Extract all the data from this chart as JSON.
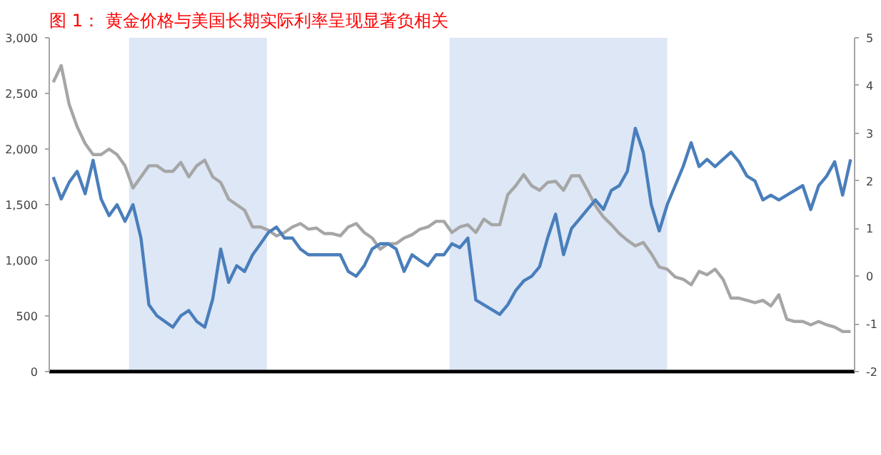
{
  "chart_data": {
    "type": "line",
    "title": "图 1：  黄金价格与美国长期实际利率呈现显著负相关",
    "categories": [
      null,
      null,
      null,
      null,
      null,
      null,
      null,
      null,
      null,
      null,
      null,
      null,
      null,
      null,
      null,
      null,
      null,
      null,
      null,
      null,
      null,
      null,
      null,
      null,
      null,
      null,
      null,
      null,
      null,
      null,
      null,
      null,
      null,
      null,
      null,
      null,
      null,
      null,
      null,
      null,
      null,
      null,
      null,
      null,
      null,
      null,
      null,
      null,
      null,
      null,
      null,
      null,
      null,
      null,
      null,
      null,
      null,
      null,
      null,
      null,
      null,
      null,
      null,
      null,
      null,
      null,
      null,
      null,
      null,
      null,
      null,
      null,
      null,
      null,
      null,
      null,
      null,
      null,
      null,
      null,
      null,
      null,
      null,
      null,
      null,
      null,
      null,
      null,
      null,
      null,
      null,
      null,
      null,
      null,
      null,
      null,
      null,
      null,
      null,
      null,
      null
    ],
    "ylim": [
      0,
      3000
    ],
    "yticks": [
      0,
      {
        "value": 500,
        "label": "500"
      },
      {
        "value": 1000,
        "label": "1,000"
      },
      {
        "value": 1500,
        "label": "1,500"
      },
      {
        "value": 2000,
        "label": "2,000"
      },
      {
        "value": 2500,
        "label": "2,500"
      },
      {
        "value": 3000,
        "label": "3,000"
      }
    ],
    "y2lim": [
      -2,
      5
    ],
    "y2ticks": [
      -2,
      -1,
      0,
      1,
      2,
      3,
      4,
      5
    ],
    "grid": false,
    "marker": "none",
    "line_style": "solid",
    "series": [
      {
        "color": "#a6a6a6",
        "values": [
          2600,
          2750,
          2400,
          2200,
          2050,
          1950,
          1950,
          2000,
          1950,
          1850,
          1650,
          1750,
          1850,
          1850,
          1800,
          1800,
          1880,
          1750,
          1850,
          1900,
          1750,
          1700,
          1550,
          1500,
          1450,
          1300,
          1300,
          1270,
          1220,
          1250,
          1300,
          1330,
          1280,
          1290,
          1240,
          1240,
          1220,
          1300,
          1330,
          1250,
          1200,
          1100,
          1150,
          1150,
          1200,
          1230,
          1280,
          1300,
          1350,
          1350,
          1250,
          1300,
          1320,
          1250,
          1370,
          1320,
          1320,
          1590,
          1670,
          1770,
          1670,
          1630,
          1700,
          1710,
          1630,
          1760,
          1760,
          1630,
          1490,
          1390,
          1320,
          1240,
          1180,
          1130,
          1160,
          1060,
          940,
          920,
          850,
          830,
          780,
          900,
          870,
          920,
          830,
          660,
          660,
          640,
          620,
          640,
          590,
          690,
          470,
          450,
          450,
          420,
          450,
          420,
          400,
          360,
          360
        ]
      },
      {
        "color": "#4a7ebb",
        "axis": "y2",
        "values": [
          2.08,
          1.62,
          1.97,
          2.2,
          1.73,
          2.43,
          1.62,
          1.27,
          1.5,
          1.15,
          1.5,
          0.8,
          -0.6,
          -0.83,
          -0.95,
          -1.07,
          -0.83,
          -0.72,
          -0.95,
          -1.07,
          -0.48,
          0.57,
          -0.13,
          0.22,
          0.1,
          0.45,
          0.68,
          0.92,
          1.03,
          0.8,
          0.8,
          0.57,
          0.45,
          0.45,
          0.45,
          0.45,
          0.45,
          0.1,
          0.0,
          0.22,
          0.57,
          0.68,
          0.68,
          0.57,
          0.1,
          0.45,
          0.33,
          0.22,
          0.45,
          0.45,
          0.68,
          0.6,
          0.8,
          -0.5,
          -0.6,
          -0.7,
          -0.8,
          -0.6,
          -0.3,
          -0.1,
          0.0,
          0.2,
          0.8,
          1.3,
          0.45,
          1.0,
          1.2,
          1.4,
          1.6,
          1.4,
          1.8,
          1.9,
          2.2,
          3.1,
          2.6,
          1.5,
          0.95,
          1.5,
          1.9,
          2.3,
          2.8,
          2.3,
          2.45,
          2.3,
          2.45,
          2.6,
          2.4,
          2.1,
          2.0,
          1.6,
          1.7,
          1.6,
          1.7,
          1.8,
          1.9,
          1.4,
          1.9,
          2.1,
          2.4,
          1.7,
          2.45
        ]
      }
    ]
  }
}
